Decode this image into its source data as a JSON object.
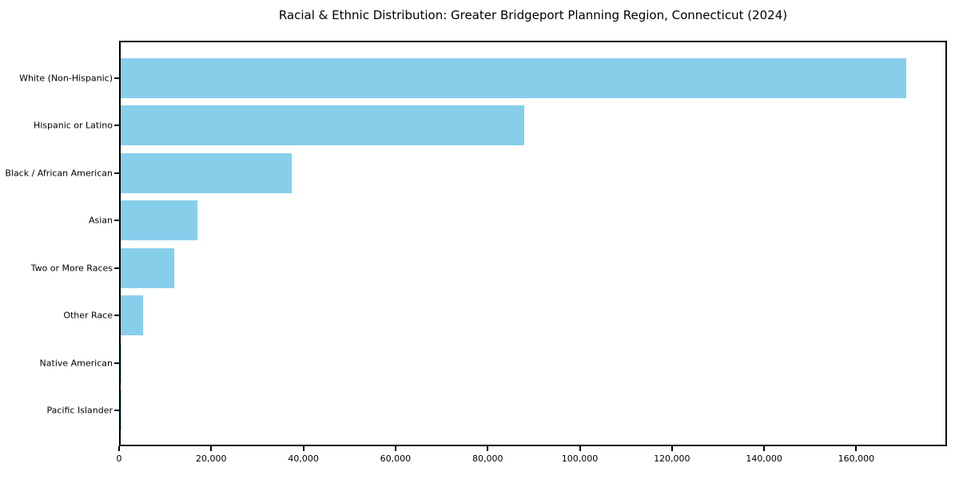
{
  "chart_data": {
    "type": "bar",
    "orientation": "horizontal",
    "title": "Racial & Ethnic Distribution: Greater Bridgeport Planning Region, Connecticut (2024)",
    "categories": [
      "White (Non-Hispanic)",
      "Hispanic or Latino",
      "Black / African American",
      "Asian",
      "Two or More Races",
      "Other Race",
      "Native American",
      "Pacific Islander"
    ],
    "values": [
      171100,
      87900,
      37200,
      16800,
      11600,
      4800,
      250,
      60
    ],
    "xlabel": "",
    "ylabel": "",
    "xlim": [
      0,
      179700
    ],
    "xticks": [
      0,
      20000,
      40000,
      60000,
      80000,
      100000,
      120000,
      140000,
      160000
    ],
    "xtick_labels": [
      "0",
      "20,000",
      "40,000",
      "60,000",
      "80,000",
      "100,000",
      "120,000",
      "140,000",
      "160,000"
    ],
    "bar_color": "#87CEEB",
    "spine_color": "#000000",
    "background_color": "#ffffff",
    "grid": false,
    "legend": null
  }
}
